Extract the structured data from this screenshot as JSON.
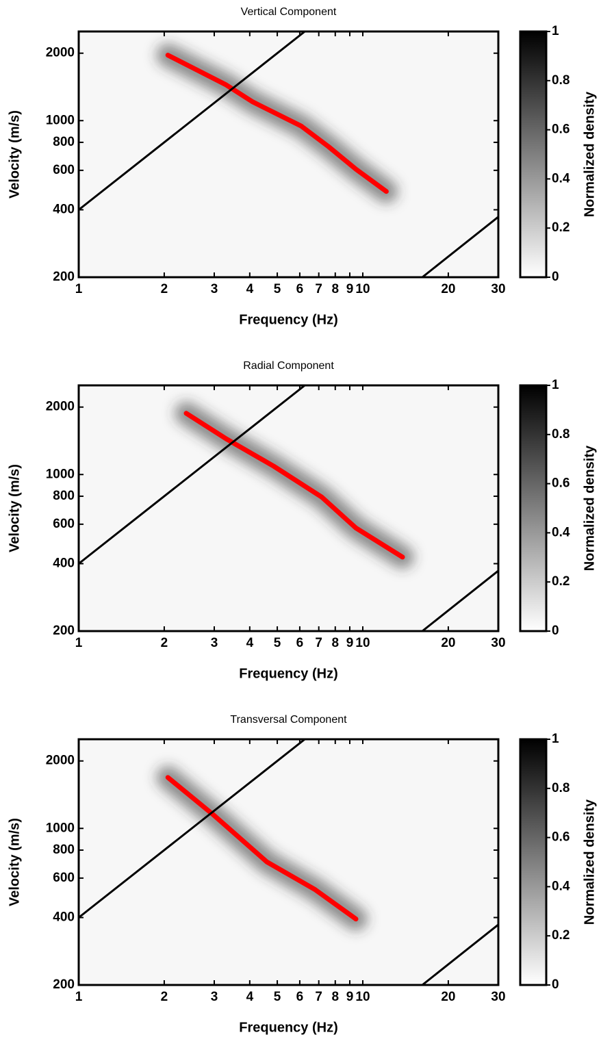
{
  "chart_data": [
    {
      "type": "line",
      "title": "Vertical Component",
      "xlabel": "Frequency (Hz)",
      "ylabel": "Velocity (m/s)",
      "xscale": "log",
      "yscale": "log",
      "xlim": [
        1,
        30
      ],
      "ylim": [
        200,
        2500
      ],
      "xticks": [
        1,
        2,
        3,
        4,
        5,
        6,
        7,
        8,
        9,
        10,
        20,
        30
      ],
      "yticks": [
        200,
        400,
        600,
        800,
        1000,
        2000
      ],
      "series": [
        {
          "color": "#ff0000",
          "x": [
            2.06,
            3.3,
            4.1,
            6.07,
            7.57,
            9.46,
            12.1
          ],
          "values": [
            1960,
            1445,
            1212,
            946,
            766,
            607,
            483
          ]
        },
        {
          "color": "#000000",
          "x": [
            1,
            6.25
          ],
          "values": [
            400,
            2500
          ]
        },
        {
          "color": "#000000",
          "x": [
            16.2,
            30
          ],
          "values": [
            200,
            372
          ]
        }
      ],
      "colorbar": {
        "label": "Normalized density",
        "lim": [
          0,
          1
        ],
        "ticks": [
          0,
          0.2,
          0.4,
          0.6,
          0.8,
          1
        ]
      }
    },
    {
      "type": "line",
      "title": "Radial Component",
      "xlabel": "Frequency (Hz)",
      "ylabel": "Velocity (m/s)",
      "xscale": "log",
      "yscale": "log",
      "xlim": [
        1,
        30
      ],
      "ylim": [
        200,
        2500
      ],
      "xticks": [
        1,
        2,
        3,
        4,
        5,
        6,
        7,
        8,
        9,
        10,
        20,
        30
      ],
      "yticks": [
        200,
        400,
        600,
        800,
        1000,
        2000
      ],
      "series": [
        {
          "color": "#ff0000",
          "x": [
            2.39,
            3.3,
            4.86,
            7.17,
            9.46,
            13.8
          ],
          "values": [
            1876,
            1445,
            1089,
            793,
            577,
            428
          ]
        },
        {
          "color": "#000000",
          "x": [
            1,
            6.25
          ],
          "values": [
            400,
            2500
          ]
        },
        {
          "color": "#000000",
          "x": [
            16.2,
            30
          ],
          "values": [
            200,
            372
          ]
        }
      ],
      "colorbar": {
        "label": "Normalized density",
        "lim": [
          0,
          1
        ],
        "ticks": [
          0,
          0.2,
          0.4,
          0.6,
          0.8,
          1
        ]
      }
    },
    {
      "type": "line",
      "title": "Transversal Component",
      "xlabel": "Frequency (Hz)",
      "ylabel": "Velocity (m/s)",
      "xscale": "log",
      "yscale": "log",
      "xlim": [
        1,
        30
      ],
      "ylim": [
        200,
        2500
      ],
      "xticks": [
        1,
        2,
        3,
        4,
        5,
        6,
        7,
        8,
        9,
        10,
        20,
        30
      ],
      "yticks": [
        200,
        400,
        600,
        800,
        1000,
        2000
      ],
      "series": [
        {
          "color": "#ff0000",
          "x": [
            2.06,
            2.95,
            4.6,
            6.78,
            9.46
          ],
          "values": [
            1688,
            1162,
            708,
            534,
            394
          ]
        },
        {
          "color": "#000000",
          "x": [
            1,
            6.25
          ],
          "values": [
            400,
            2500
          ]
        },
        {
          "color": "#000000",
          "x": [
            16.2,
            30
          ],
          "values": [
            200,
            372
          ]
        }
      ],
      "colorbar": {
        "label": "Normalized density",
        "lim": [
          0,
          1
        ],
        "ticks": [
          0,
          0.2,
          0.4,
          0.6,
          0.8,
          1
        ]
      }
    }
  ]
}
